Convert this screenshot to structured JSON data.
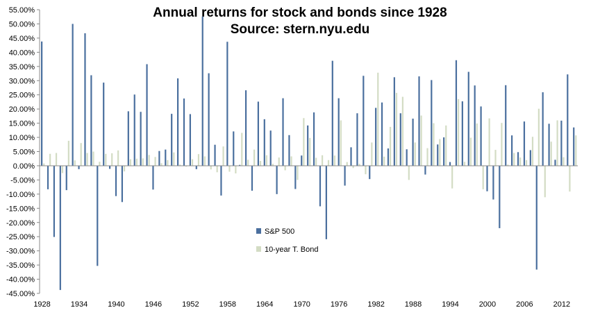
{
  "chart_data": {
    "type": "bar",
    "title": "Annual returns for stock and bonds since 1928",
    "subtitle": "Source: stern.nyu.edu",
    "xlabel": "",
    "ylabel": "",
    "ylim": [
      -45,
      55
    ],
    "y_tick_step": 5,
    "y_tick_format": "percent_2dp",
    "grid": false,
    "legend_position": "center",
    "x_tick_labels": [
      "1928",
      "1934",
      "1940",
      "1946",
      "1952",
      "1958",
      "1964",
      "1970",
      "1976",
      "1982",
      "1988",
      "1994",
      "2000",
      "2006",
      "2012"
    ],
    "x_tick_years": [
      1928,
      1934,
      1940,
      1946,
      1952,
      1958,
      1964,
      1970,
      1976,
      1982,
      1988,
      1994,
      2000,
      2006,
      2012
    ],
    "categories": [
      1928,
      1929,
      1930,
      1931,
      1932,
      1933,
      1934,
      1935,
      1936,
      1937,
      1938,
      1939,
      1940,
      1941,
      1942,
      1943,
      1944,
      1945,
      1946,
      1947,
      1948,
      1949,
      1950,
      1951,
      1952,
      1953,
      1954,
      1955,
      1956,
      1957,
      1958,
      1959,
      1960,
      1961,
      1962,
      1963,
      1964,
      1965,
      1966,
      1967,
      1968,
      1969,
      1970,
      1971,
      1972,
      1973,
      1974,
      1975,
      1976,
      1977,
      1978,
      1979,
      1980,
      1981,
      1982,
      1983,
      1984,
      1985,
      1986,
      1987,
      1988,
      1989,
      1990,
      1991,
      1992,
      1993,
      1994,
      1995,
      1996,
      1997,
      1998,
      1999,
      2000,
      2001,
      2002,
      2003,
      2004,
      2005,
      2006,
      2007,
      2008,
      2009,
      2010,
      2011,
      2012,
      2013,
      2014
    ],
    "series": [
      {
        "name": "S&P 500",
        "color": "#4a6f9e",
        "values": [
          43.8,
          -8.3,
          -25.1,
          -43.8,
          -8.6,
          50.0,
          -1.2,
          46.7,
          31.9,
          -35.3,
          29.3,
          -1.1,
          -10.7,
          -12.8,
          19.2,
          25.1,
          19.0,
          35.8,
          -8.4,
          5.2,
          5.7,
          18.3,
          30.8,
          23.7,
          18.2,
          -1.2,
          52.6,
          32.6,
          7.4,
          -10.5,
          43.7,
          12.1,
          0.3,
          26.6,
          -8.8,
          22.6,
          16.4,
          12.4,
          -10.0,
          23.8,
          10.8,
          -8.2,
          3.6,
          14.2,
          18.8,
          -14.3,
          -25.9,
          37.0,
          23.8,
          -7.0,
          6.5,
          18.5,
          31.7,
          -4.7,
          20.4,
          22.3,
          6.1,
          31.2,
          18.5,
          5.8,
          16.6,
          31.5,
          -3.1,
          30.2,
          7.5,
          10.0,
          1.3,
          37.2,
          22.7,
          33.1,
          28.3,
          20.9,
          -9.0,
          -11.9,
          -22.0,
          28.4,
          10.7,
          4.8,
          15.6,
          5.5,
          -36.6,
          25.9,
          14.8,
          2.1,
          15.9,
          32.2,
          13.5
        ]
      },
      {
        "name": "10-year T. Bond",
        "color": "#d3dcc4",
        "values": [
          0.8,
          4.2,
          4.5,
          -2.6,
          8.8,
          1.9,
          8.0,
          4.5,
          5.0,
          1.4,
          4.2,
          4.4,
          5.4,
          -2.0,
          2.3,
          2.5,
          2.6,
          3.8,
          3.1,
          0.9,
          2.0,
          4.7,
          0.4,
          -0.3,
          2.3,
          4.1,
          3.3,
          -1.3,
          -2.3,
          6.8,
          -2.1,
          -2.7,
          11.6,
          2.1,
          5.7,
          1.7,
          3.7,
          0.7,
          2.9,
          -1.6,
          3.3,
          -5.0,
          16.8,
          9.8,
          2.8,
          3.7,
          2.0,
          3.6,
          16.0,
          1.3,
          -0.8,
          0.7,
          -3.0,
          8.2,
          32.8,
          3.2,
          13.7,
          25.7,
          24.3,
          -5.0,
          8.2,
          17.7,
          6.2,
          15.0,
          9.4,
          14.2,
          -8.0,
          23.5,
          1.4,
          9.9,
          14.9,
          -8.3,
          16.7,
          5.6,
          15.1,
          0.4,
          4.5,
          2.9,
          2.0,
          10.2,
          20.1,
          -11.1,
          8.5,
          16.0,
          3.0,
          -9.1,
          10.7
        ]
      }
    ]
  }
}
